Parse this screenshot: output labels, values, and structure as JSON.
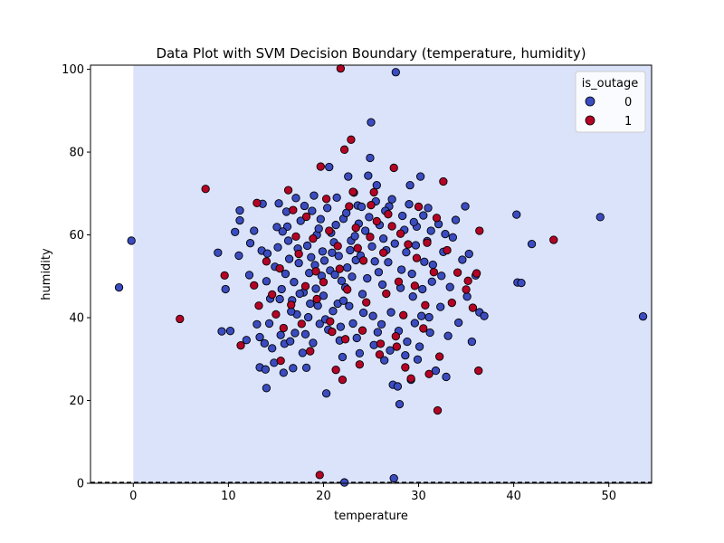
{
  "chart_data": {
    "type": "scatter",
    "title": "Data Plot with SVM Decision Boundary (temperature, humidity)",
    "xlabel": "temperature",
    "ylabel": "humidity",
    "xlim": [
      -4.5,
      54.5
    ],
    "ylim": [
      0,
      101
    ],
    "xticks": [
      0,
      10,
      20,
      30,
      40,
      50
    ],
    "yticks": [
      0,
      20,
      40,
      60,
      80,
      100
    ],
    "grid": false,
    "legend": {
      "title": "is_outage",
      "placement": "top-right",
      "entries": [
        {
          "label": "0",
          "color": "#3b4cc0"
        },
        {
          "label": "1",
          "color": "#b40426"
        }
      ]
    },
    "decision_region": {
      "x_start": 0,
      "color": "#dbe3fb"
    },
    "decision_boundary": {
      "y": 0,
      "style": "dashed"
    },
    "series": [
      {
        "name": "0",
        "color": "#3b4cc0",
        "points": [
          [
            -1.5,
            47.3
          ],
          [
            -0.2,
            58.6
          ],
          [
            8.9,
            55.7
          ],
          [
            9.3,
            36.7
          ],
          [
            9.7,
            46.9
          ],
          [
            10.2,
            36.8
          ],
          [
            10.7,
            60.7
          ],
          [
            11.1,
            55.0
          ],
          [
            11.2,
            63.5
          ],
          [
            11.2,
            65.9
          ],
          [
            11.9,
            34.6
          ],
          [
            12.2,
            50.3
          ],
          [
            12.3,
            58.0
          ],
          [
            12.7,
            61.0
          ],
          [
            13.0,
            38.4
          ],
          [
            13.3,
            28.0
          ],
          [
            13.3,
            35.3
          ],
          [
            13.5,
            56.2
          ],
          [
            13.6,
            67.5
          ],
          [
            13.8,
            33.8
          ],
          [
            13.9,
            27.5
          ],
          [
            14.0,
            23.0
          ],
          [
            14.0,
            48.8
          ],
          [
            14.1,
            55.5
          ],
          [
            14.3,
            38.6
          ],
          [
            14.6,
            32.6
          ],
          [
            14.8,
            29.1
          ],
          [
            15.1,
            61.9
          ],
          [
            15.3,
            67.6
          ],
          [
            15.4,
            44.5
          ],
          [
            15.5,
            35.8
          ],
          [
            15.8,
            26.7
          ],
          [
            15.9,
            33.7
          ],
          [
            16.0,
            50.6
          ],
          [
            16.2,
            62.0
          ],
          [
            16.5,
            34.3
          ],
          [
            16.7,
            44.2
          ],
          [
            16.8,
            27.8
          ],
          [
            17.2,
            40.8
          ],
          [
            17.4,
            53.2
          ],
          [
            17.9,
            46.1
          ],
          [
            18.1,
            36.0
          ],
          [
            18.2,
            27.9
          ],
          [
            18.3,
            57.4
          ],
          [
            18.6,
            43.4
          ],
          [
            18.9,
            33.9
          ],
          [
            19.3,
            60.0
          ],
          [
            19.6,
            38.5
          ],
          [
            19.8,
            50.1
          ],
          [
            20.0,
            45.3
          ],
          [
            20.3,
            21.7
          ],
          [
            20.5,
            37.1
          ],
          [
            20.6,
            76.4
          ],
          [
            20.9,
            55.7
          ],
          [
            21.3,
            62.4
          ],
          [
            21.5,
            43.4
          ],
          [
            21.7,
            34.5
          ],
          [
            22.0,
            30.5
          ],
          [
            22.1,
            63.9
          ],
          [
            22.2,
            0.2
          ],
          [
            22.3,
            47.3
          ],
          [
            22.6,
            74.1
          ],
          [
            22.9,
            58.6
          ],
          [
            23.1,
            38.6
          ],
          [
            23.4,
            53.9
          ],
          [
            23.6,
            67.1
          ],
          [
            23.8,
            31.4
          ],
          [
            24.1,
            45.7
          ],
          [
            24.4,
            61.0
          ],
          [
            24.7,
            74.3
          ],
          [
            24.9,
            78.6
          ],
          [
            25.0,
            87.2
          ],
          [
            25.2,
            40.4
          ],
          [
            25.4,
            53.6
          ],
          [
            25.6,
            72.0
          ],
          [
            25.7,
            36.5
          ],
          [
            25.9,
            62.4
          ],
          [
            26.2,
            48.0
          ],
          [
            26.4,
            29.7
          ],
          [
            26.6,
            56.3
          ],
          [
            26.9,
            66.9
          ],
          [
            27.1,
            41.3
          ],
          [
            27.3,
            23.8
          ],
          [
            27.4,
            1.2
          ],
          [
            27.6,
            99.3
          ],
          [
            27.8,
            23.4
          ],
          [
            28.0,
            19.1
          ],
          [
            28.2,
            51.6
          ],
          [
            28.5,
            61.2
          ],
          [
            28.8,
            34.2
          ],
          [
            29.1,
            72.0
          ],
          [
            29.2,
            25.0
          ],
          [
            29.4,
            45.1
          ],
          [
            29.7,
            57.5
          ],
          [
            29.9,
            29.9
          ],
          [
            30.2,
            74.1
          ],
          [
            30.3,
            40.4
          ],
          [
            30.6,
            53.5
          ],
          [
            31.0,
            66.5
          ],
          [
            31.2,
            36.4
          ],
          [
            31.4,
            48.7
          ],
          [
            31.8,
            27.2
          ],
          [
            32.1,
            62.6
          ],
          [
            32.3,
            42.6
          ],
          [
            32.6,
            55.9
          ],
          [
            32.9,
            25.7
          ],
          [
            33.1,
            35.6
          ],
          [
            33.3,
            47.4
          ],
          [
            33.6,
            59.4
          ],
          [
            33.9,
            63.6
          ],
          [
            34.2,
            38.8
          ],
          [
            34.6,
            54.0
          ],
          [
            34.9,
            66.9
          ],
          [
            35.1,
            45.1
          ],
          [
            35.3,
            55.4
          ],
          [
            35.6,
            34.2
          ],
          [
            36.0,
            50.2
          ],
          [
            36.4,
            41.3
          ],
          [
            36.9,
            40.4
          ],
          [
            40.3,
            64.9
          ],
          [
            40.4,
            48.5
          ],
          [
            40.8,
            48.4
          ],
          [
            41.9,
            57.8
          ],
          [
            49.1,
            64.3
          ],
          [
            53.6,
            40.3
          ],
          [
            16.3,
            58.6
          ],
          [
            17.6,
            63.4
          ],
          [
            18.8,
            65.8
          ],
          [
            19.1,
            52.7
          ],
          [
            19.9,
            56.0
          ],
          [
            20.7,
            51.4
          ],
          [
            21.1,
            58.2
          ],
          [
            21.9,
            48.9
          ],
          [
            22.5,
            52.1
          ],
          [
            23.3,
            59.7
          ],
          [
            23.9,
            55.0
          ],
          [
            24.6,
            49.5
          ],
          [
            25.1,
            57.2
          ],
          [
            25.8,
            51.0
          ],
          [
            26.3,
            59.1
          ],
          [
            26.8,
            53.4
          ],
          [
            27.5,
            57.9
          ],
          [
            28.1,
            47.2
          ],
          [
            28.7,
            55.8
          ],
          [
            29.3,
            50.6
          ],
          [
            29.8,
            62.0
          ],
          [
            30.4,
            46.9
          ],
          [
            30.9,
            58.5
          ],
          [
            31.5,
            52.8
          ],
          [
            32.4,
            50.1
          ],
          [
            15.6,
            46.9
          ],
          [
            16.6,
            41.5
          ],
          [
            17.0,
            36.3
          ],
          [
            17.8,
            31.5
          ],
          [
            18.4,
            40.1
          ],
          [
            19.4,
            42.9
          ],
          [
            20.2,
            39.6
          ],
          [
            21.0,
            41.6
          ],
          [
            21.8,
            37.8
          ],
          [
            22.7,
            42.8
          ],
          [
            23.5,
            35.1
          ],
          [
            24.2,
            41.2
          ],
          [
            25.3,
            33.4
          ],
          [
            26.1,
            38.4
          ],
          [
            27.0,
            32.1
          ],
          [
            27.9,
            36.8
          ],
          [
            28.6,
            30.9
          ],
          [
            29.6,
            38.7
          ],
          [
            30.1,
            33.0
          ],
          [
            31.1,
            40.1
          ],
          [
            16.1,
            65.6
          ],
          [
            17.1,
            68.9
          ],
          [
            18.0,
            67.0
          ],
          [
            19.0,
            69.5
          ],
          [
            19.7,
            63.8
          ],
          [
            20.4,
            66.5
          ],
          [
            21.4,
            69.0
          ],
          [
            22.4,
            65.3
          ],
          [
            23.2,
            70.2
          ],
          [
            24.0,
            66.8
          ],
          [
            24.8,
            64.3
          ],
          [
            25.5,
            68.1
          ],
          [
            26.5,
            65.8
          ],
          [
            27.2,
            68.6
          ],
          [
            28.3,
            64.6
          ],
          [
            29.0,
            67.4
          ],
          [
            29.5,
            63.1
          ],
          [
            30.5,
            64.7
          ],
          [
            31.3,
            61.0
          ],
          [
            32.8,
            60.2
          ],
          [
            14.4,
            44.6
          ],
          [
            14.9,
            52.3
          ],
          [
            15.2,
            57.0
          ],
          [
            15.7,
            60.8
          ],
          [
            16.4,
            54.2
          ],
          [
            16.9,
            48.6
          ],
          [
            17.3,
            56.7
          ],
          [
            17.5,
            45.8
          ],
          [
            18.5,
            50.8
          ],
          [
            18.7,
            54.6
          ],
          [
            19.2,
            47.0
          ],
          [
            19.5,
            61.5
          ],
          [
            20.1,
            53.8
          ],
          [
            20.8,
            60.5
          ],
          [
            21.2,
            50.4
          ],
          [
            21.6,
            54.9
          ],
          [
            22.1,
            44.1
          ],
          [
            22.8,
            56.3
          ],
          [
            23.0,
            49.9
          ],
          [
            23.7,
            62.7
          ]
        ]
      },
      {
        "name": "1",
        "color": "#b40426",
        "points": [
          [
            4.9,
            39.7
          ],
          [
            7.6,
            71.1
          ],
          [
            9.6,
            50.2
          ],
          [
            11.3,
            33.3
          ],
          [
            12.7,
            47.8
          ],
          [
            13.0,
            67.7
          ],
          [
            13.2,
            42.9
          ],
          [
            14.0,
            53.6
          ],
          [
            14.6,
            45.6
          ],
          [
            15.0,
            40.8
          ],
          [
            15.5,
            29.6
          ],
          [
            15.8,
            37.5
          ],
          [
            16.3,
            70.8
          ],
          [
            16.6,
            43.1
          ],
          [
            17.1,
            59.6
          ],
          [
            17.7,
            38.5
          ],
          [
            18.2,
            64.4
          ],
          [
            18.6,
            31.9
          ],
          [
            19.2,
            51.2
          ],
          [
            19.6,
            2.0
          ],
          [
            19.7,
            76.5
          ],
          [
            20.0,
            48.6
          ],
          [
            20.3,
            68.7
          ],
          [
            20.9,
            36.6
          ],
          [
            21.3,
            27.4
          ],
          [
            21.5,
            57.3
          ],
          [
            21.8,
            100.2
          ],
          [
            22.0,
            25.0
          ],
          [
            22.2,
            80.6
          ],
          [
            22.5,
            46.8
          ],
          [
            22.9,
            83.0
          ],
          [
            23.1,
            70.4
          ],
          [
            23.4,
            61.7
          ],
          [
            23.8,
            28.7
          ],
          [
            24.2,
            53.8
          ],
          [
            24.5,
            43.7
          ],
          [
            25.3,
            70.3
          ],
          [
            25.6,
            63.3
          ],
          [
            26.0,
            33.7
          ],
          [
            26.6,
            45.8
          ],
          [
            27.2,
            62.1
          ],
          [
            27.4,
            76.2
          ],
          [
            27.6,
            35.5
          ],
          [
            27.9,
            48.7
          ],
          [
            28.4,
            40.6
          ],
          [
            28.6,
            28.0
          ],
          [
            28.9,
            57.7
          ],
          [
            29.2,
            25.3
          ],
          [
            29.6,
            47.7
          ],
          [
            30.0,
            66.8
          ],
          [
            30.5,
            37.4
          ],
          [
            30.9,
            58.1
          ],
          [
            31.1,
            26.4
          ],
          [
            31.6,
            51.0
          ],
          [
            32.0,
            17.6
          ],
          [
            32.2,
            30.6
          ],
          [
            32.6,
            72.9
          ],
          [
            33.0,
            56.3
          ],
          [
            33.5,
            43.6
          ],
          [
            34.1,
            50.9
          ],
          [
            35.0,
            46.8
          ],
          [
            35.2,
            48.9
          ],
          [
            35.7,
            42.4
          ],
          [
            36.1,
            50.7
          ],
          [
            36.3,
            27.2
          ],
          [
            36.4,
            61.0
          ],
          [
            44.2,
            58.8
          ],
          [
            17.4,
            55.4
          ],
          [
            18.9,
            59.1
          ],
          [
            20.6,
            61.0
          ],
          [
            21.7,
            51.8
          ],
          [
            23.6,
            56.8
          ],
          [
            24.9,
            59.5
          ],
          [
            26.3,
            55.7
          ],
          [
            28.1,
            60.3
          ],
          [
            29.8,
            54.4
          ],
          [
            19.3,
            44.5
          ],
          [
            20.7,
            39.1
          ],
          [
            22.3,
            34.8
          ],
          [
            24.1,
            36.9
          ],
          [
            25.9,
            31.1
          ],
          [
            27.7,
            33.0
          ],
          [
            30.7,
            43.0
          ],
          [
            16.8,
            66.0
          ],
          [
            22.7,
            66.9
          ],
          [
            25.0,
            67.2
          ],
          [
            26.8,
            65.0
          ],
          [
            31.9,
            64.1
          ],
          [
            15.4,
            51.9
          ],
          [
            18.1,
            47.6
          ]
        ]
      }
    ]
  }
}
